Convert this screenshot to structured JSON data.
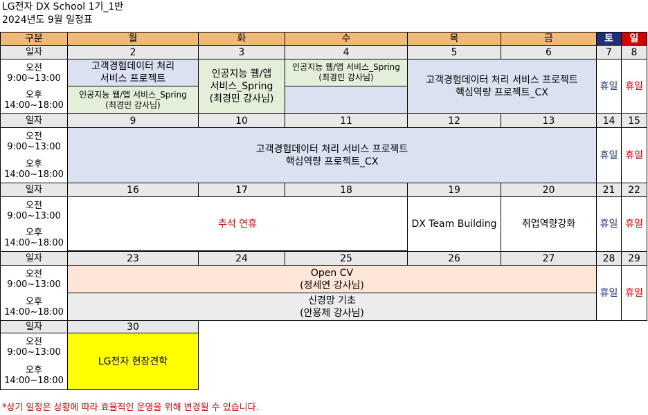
{
  "title": {
    "line1": "LG전자 DX School 1기_1반",
    "line2": "2024년도 9월 일정표"
  },
  "headers": {
    "gubun": "구분",
    "mon": "월",
    "tue": "화",
    "wed": "수",
    "thu": "목",
    "fri": "금",
    "sat": "토",
    "sun": "일"
  },
  "labels": {
    "date": "일자",
    "am": "오전",
    "am_time": "9:00~13:00",
    "pm": "오후",
    "pm_time": "14:00~18:00"
  },
  "weeks": [
    {
      "dates": [
        "2",
        "3",
        "4",
        "5",
        "6",
        "7",
        "8"
      ]
    },
    {
      "dates": [
        "9",
        "10",
        "11",
        "12",
        "13",
        "14",
        "15"
      ]
    },
    {
      "dates": [
        "16",
        "17",
        "18",
        "19",
        "20",
        "21",
        "22"
      ]
    },
    {
      "dates": [
        "23",
        "24",
        "25",
        "26",
        "27",
        "28",
        "29"
      ]
    },
    {
      "dates": [
        "30"
      ]
    }
  ],
  "events": {
    "w1_mon_am_l1": "고객경험데이터 처리",
    "w1_mon_am_l2": "서비스 프로젝트",
    "w1_mon_pm_l1": "인공지능 웹/앱 서비스_Spring",
    "w1_mon_pm_l2": "(최경민 강사님)",
    "w1_tue_l1": "인공지능 웹/앱",
    "w1_tue_l2": "서비스_Spring",
    "w1_tue_l3": "(최경민 강사님)",
    "w1_wed_am_l1": "인공지능 웹/앱 서비스_Spring",
    "w1_wed_am_l2": "(최경민 강사님)",
    "w1_proj_l1": "고객경험데이터 처리 서비스 프로젝트",
    "w1_proj_l2": "핵심역량 프로젝트_CX",
    "w2_proj_l1": "고객경험데이터 처리 서비스 프로젝트",
    "w2_proj_l2": "핵심역량 프로젝트_CX",
    "w3_chuseok": "추석 연휴",
    "w3_thu": "DX Team Building",
    "w3_fri": "취업역량강화",
    "w4_am_l1": "Open CV",
    "w4_am_l2": "(정세연 강사님)",
    "w4_pm_l1": "신경망 기초",
    "w4_pm_l2": "(안용제 강사님)",
    "w5_mon": "LG전자 현장견학",
    "holiday": "휴일"
  },
  "footnote": "*상기 일정은 상황에 따라 효율적인 운영을 위해 변경될 수 있습니다.",
  "colors": {
    "header": "#f0b97a",
    "saturday": "#1f2f7a",
    "sunday": "#d40000",
    "date_row": "#e8e8e8",
    "project": "#dae2f1",
    "spring": "#e3efd9",
    "opencv": "#fde5d8",
    "visit": "#ffff00",
    "red_text": "#e00000"
  }
}
